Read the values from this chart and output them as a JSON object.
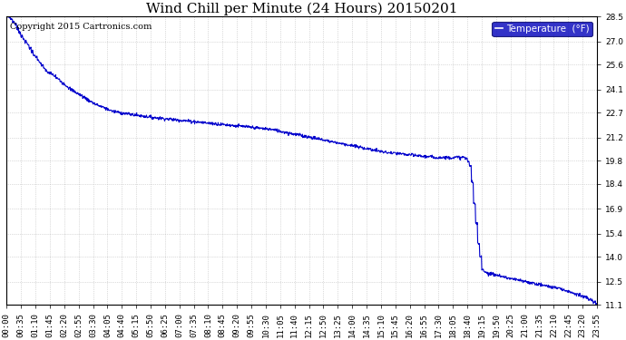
{
  "title": "Wind Chill per Minute (24 Hours) 20150201",
  "copyright_text": "Copyright 2015 Cartronics.com",
  "legend_label": "Temperature  (°F)",
  "legend_bg": "#0000bb",
  "legend_text_color": "#ffffff",
  "line_color": "#0000cc",
  "bg_color": "#ffffff",
  "plot_bg_color": "#ffffff",
  "grid_color": "#aaaaaa",
  "grid_style": ":",
  "ylim": [
    11.1,
    28.5
  ],
  "yticks": [
    11.1,
    12.5,
    14.0,
    15.4,
    16.9,
    18.4,
    19.8,
    21.2,
    22.7,
    24.1,
    25.6,
    27.0,
    28.5
  ],
  "xlim_minutes": [
    0,
    1435
  ],
  "xtick_labels": [
    "00:00",
    "00:35",
    "01:10",
    "01:45",
    "02:20",
    "02:55",
    "03:30",
    "04:05",
    "04:40",
    "05:15",
    "05:50",
    "06:25",
    "07:00",
    "07:35",
    "08:10",
    "08:45",
    "09:20",
    "09:55",
    "10:30",
    "11:05",
    "11:40",
    "12:15",
    "12:50",
    "13:25",
    "14:00",
    "14:35",
    "15:10",
    "15:45",
    "16:20",
    "16:55",
    "17:30",
    "18:05",
    "18:40",
    "19:15",
    "19:50",
    "20:25",
    "21:00",
    "21:35",
    "22:10",
    "22:45",
    "23:20",
    "23:55"
  ],
  "xtick_minutes": [
    0,
    35,
    70,
    105,
    140,
    175,
    210,
    245,
    280,
    315,
    350,
    385,
    420,
    455,
    490,
    525,
    560,
    595,
    630,
    665,
    700,
    735,
    770,
    805,
    840,
    875,
    910,
    945,
    980,
    1015,
    1050,
    1085,
    1120,
    1155,
    1190,
    1225,
    1260,
    1295,
    1330,
    1365,
    1400,
    1435
  ],
  "title_fontsize": 11,
  "tick_fontsize": 6.5,
  "copyright_fontsize": 7
}
